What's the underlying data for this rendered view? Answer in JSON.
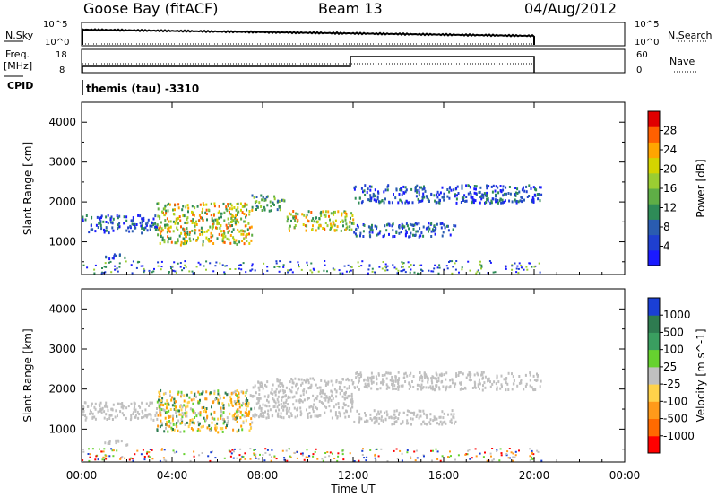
{
  "header": {
    "station": "Goose Bay (fitACF)",
    "beam": "Beam 13",
    "date": "04/Aug/2012"
  },
  "params_panel": {
    "nsky_label": "N.Sky",
    "nsearch_label": "N.Search",
    "freq_label_1": "Freq.",
    "freq_label_2": "[MHz]",
    "nave_label": "Nave",
    "cpid_label": "CPID",
    "cpid_text": "themis (tau) -3310",
    "noise_left_ticks": [
      "10^5",
      "10^0"
    ],
    "noise_right_ticks": [
      "10^5",
      "10^0"
    ],
    "freq_left_ticks": [
      "18",
      "8"
    ],
    "nave_right_ticks": [
      "60",
      "0"
    ]
  },
  "chart_data": [
    {
      "type": "scatter",
      "title": "Power",
      "ylabel": "Slant Range [km]",
      "xlabel": "",
      "xlim": [
        0,
        24
      ],
      "ylim": [
        180,
        4500
      ],
      "y_ticks": [
        1000,
        2000,
        3000,
        4000
      ],
      "colorbar": {
        "label": "Power [dB]",
        "ticks": [
          "4",
          "8",
          "12",
          "16",
          "20",
          "24",
          "28"
        ],
        "colors": [
          "#1a1aff",
          "#1f3fd0",
          "#2a5cb0",
          "#2e8b57",
          "#5fae46",
          "#9acd32",
          "#d4d400",
          "#ffa500",
          "#ff6000",
          "#e00000"
        ]
      },
      "echo_regions": [
        {
          "x": [
            0.0,
            3.3
          ],
          "y": [
            1250,
            1700
          ],
          "level": "low"
        },
        {
          "x": [
            3.3,
            7.5
          ],
          "y": [
            950,
            2000
          ],
          "level": "high"
        },
        {
          "x": [
            7.5,
            9.0
          ],
          "y": [
            1800,
            2200
          ],
          "level": "mid"
        },
        {
          "x": [
            9.0,
            12.0
          ],
          "y": [
            1300,
            1800
          ],
          "level": "high"
        },
        {
          "x": [
            12.0,
            20.3
          ],
          "y": [
            2000,
            2450
          ],
          "level": "low"
        },
        {
          "x": [
            12.0,
            16.5
          ],
          "y": [
            1150,
            1500
          ],
          "level": "low"
        },
        {
          "x": [
            1.0,
            2.0
          ],
          "y": [
            600,
            750
          ],
          "level": "low"
        }
      ]
    },
    {
      "type": "scatter",
      "title": "Velocity",
      "ylabel": "Slant Range [km]",
      "xlabel": "Time UT",
      "xlim": [
        0,
        24
      ],
      "ylim": [
        180,
        4500
      ],
      "y_ticks": [
        1000,
        2000,
        3000,
        4000
      ],
      "x_ticks": [
        "00:00",
        "04:00",
        "08:00",
        "12:00",
        "16:00",
        "20:00",
        "00:00"
      ],
      "colorbar": {
        "label": "Velocity [m s^-1]",
        "ticks": [
          "1000",
          "500",
          "100",
          "25",
          "-25",
          "-100",
          "-500",
          "-1000"
        ],
        "colors": [
          "#1a3fd6",
          "#2e7b50",
          "#3a9e60",
          "#66d22f",
          "#c0c0c0",
          "#ffd24a",
          "#ff9a1a",
          "#ff6a00",
          "#ff0000"
        ]
      },
      "echo_regions": [
        {
          "x": [
            0.0,
            3.3
          ],
          "y": [
            1250,
            1700
          ],
          "level": "gray"
        },
        {
          "x": [
            3.3,
            7.5
          ],
          "y": [
            950,
            2000
          ],
          "level": "away"
        },
        {
          "x": [
            7.5,
            12.0
          ],
          "y": [
            1300,
            2300
          ],
          "level": "gray"
        },
        {
          "x": [
            12.0,
            20.3
          ],
          "y": [
            2000,
            2450
          ],
          "level": "gray"
        },
        {
          "x": [
            12.0,
            16.5
          ],
          "y": [
            1150,
            1500
          ],
          "level": "gray"
        },
        {
          "x": [
            1.0,
            2.0
          ],
          "y": [
            600,
            750
          ],
          "level": "gray"
        }
      ]
    }
  ],
  "colors": {
    "ground_scatter": "#c0c0c0",
    "axis": "#000000"
  }
}
